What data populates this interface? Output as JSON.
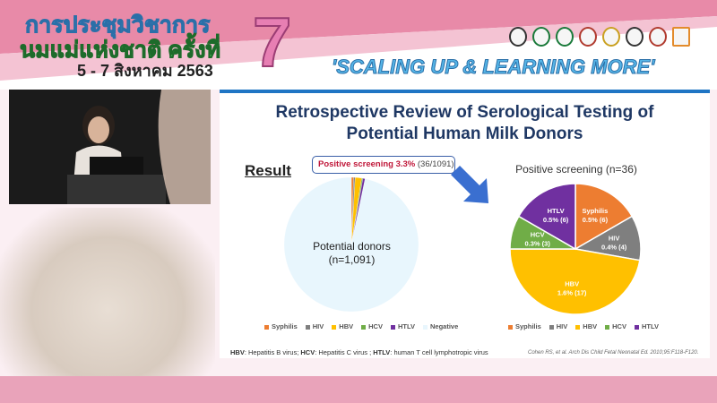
{
  "banner": {
    "title_line1": "การประชุมวิชาการ",
    "title_line2": "นมแม่แห่งชาติ ครั้งที่",
    "date": "5 - 7 สิงหาคม 2563",
    "number": "7",
    "slogan": "'SCALING UP & LEARNING MORE'"
  },
  "slide": {
    "title_line1": "Retrospective Review of Serological Testing of",
    "title_line2": "Potential Human Milk Donors",
    "result_heading": "Result",
    "callout_bold": "Positive screening 3.3%",
    "callout_rest": "(36/1091)",
    "left_pie_label_1": "Potential donors",
    "left_pie_label_2": "(n=1,091)",
    "right_pie_title": "Positive screening (n=36)",
    "footnote_hbv": "HBV",
    "footnote_hbv_text": ": Hepatitis B virus; ",
    "footnote_hcv": "HCV",
    "footnote_hcv_text": ": Hepatitis C virus ; ",
    "footnote_htlv": "HTLV",
    "footnote_htlv_text": ": human T cell lymphotropic virus",
    "citation": "Cohen RS, et al. Arch Dis Child Fetal Neonatal Ed. 2010;95:F118-F120."
  },
  "chart_data": [
    {
      "type": "pie",
      "categories": [
        "Syphilis",
        "HIV",
        "HBV",
        "HCV",
        "HTLV",
        "Negative"
      ],
      "values": [
        6,
        4,
        17,
        3,
        6,
        1055
      ],
      "colors": [
        "#ed7d31",
        "#7f7f7f",
        "#ffc000",
        "#70ad47",
        "#7030a0",
        "#e8f6fd"
      ]
    },
    {
      "type": "pie",
      "title": "Positive screening (n=36)",
      "categories": [
        "Syphilis",
        "HIV",
        "HBV",
        "HCV",
        "HTLV"
      ],
      "values": [
        6,
        4,
        17,
        3,
        6
      ],
      "data_labels": [
        "0.5% (6)",
        "0.4% (4)",
        "1.6% (17)",
        "0.3% (3)",
        "0.5% (6)"
      ],
      "colors": [
        "#ed7d31",
        "#7f7f7f",
        "#ffc000",
        "#70ad47",
        "#7030a0"
      ]
    }
  ]
}
